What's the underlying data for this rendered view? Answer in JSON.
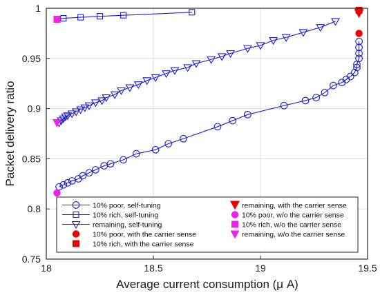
{
  "chart_data": {
    "type": "line",
    "xlabel": "Average current consumption (μ A)",
    "ylabel": "Packet delivery ratio",
    "xlim": [
      18,
      19.5
    ],
    "ylim": [
      0.75,
      1.0
    ],
    "xticks": [
      "18",
      "18.5",
      "19",
      "19.5"
    ],
    "yticks": [
      "0.75",
      "0.8",
      "0.85",
      "0.9",
      "0.95",
      "1"
    ],
    "grid": true,
    "legend_placement": "bottom",
    "colors": {
      "line": "#1c1cd6",
      "filled": "#ee0000",
      "magenta": "#ee22ee"
    },
    "series": [
      {
        "name": "10% poor, self-tuning",
        "marker": "circle",
        "x": [
          18.06,
          18.08,
          18.1,
          18.12,
          18.15,
          18.17,
          18.2,
          18.23,
          18.27,
          18.3,
          18.36,
          18.42,
          18.51,
          18.57,
          18.64,
          18.8,
          18.87,
          18.94,
          19.11,
          19.21,
          19.26,
          19.3,
          19.34,
          19.38,
          19.4,
          19.42,
          19.44,
          19.45,
          19.45,
          19.46,
          19.46,
          19.46,
          19.46
        ],
        "y": [
          0.822,
          0.824,
          0.826,
          0.828,
          0.83,
          0.833,
          0.836,
          0.839,
          0.843,
          0.845,
          0.849,
          0.855,
          0.859,
          0.865,
          0.87,
          0.882,
          0.888,
          0.894,
          0.903,
          0.908,
          0.911,
          0.916,
          0.923,
          0.926,
          0.929,
          0.932,
          0.936,
          0.941,
          0.944,
          0.95,
          0.955,
          0.961,
          0.967
        ]
      },
      {
        "name": "10% rich, self-tuning",
        "marker": "square",
        "x": [
          18.05,
          18.08,
          18.16,
          18.25,
          18.36,
          18.68
        ],
        "y": [
          0.989,
          0.99,
          0.991,
          0.992,
          0.993,
          0.996
        ]
      },
      {
        "name": "remaining, self-tuning",
        "marker": "triangle-down",
        "x": [
          18.06,
          18.07,
          18.08,
          18.09,
          18.1,
          18.12,
          18.14,
          18.16,
          18.18,
          18.2,
          18.23,
          18.26,
          18.28,
          18.32,
          18.35,
          18.39,
          18.43,
          18.47,
          18.51,
          18.56,
          18.6,
          18.66,
          18.7,
          18.77,
          18.82,
          18.86,
          18.94,
          19.0,
          19.06,
          19.12,
          19.2,
          19.28,
          19.35
        ],
        "y": [
          0.886,
          0.888,
          0.89,
          0.892,
          0.893,
          0.895,
          0.897,
          0.899,
          0.901,
          0.903,
          0.906,
          0.908,
          0.911,
          0.914,
          0.918,
          0.921,
          0.924,
          0.928,
          0.931,
          0.935,
          0.938,
          0.941,
          0.945,
          0.949,
          0.952,
          0.955,
          0.96,
          0.963,
          0.968,
          0.971,
          0.976,
          0.981,
          0.987
        ]
      },
      {
        "name": "10% poor, with the carrier sense",
        "marker": "circle-filled",
        "x": [
          19.46
        ],
        "y": [
          0.975
        ]
      },
      {
        "name": "10% rich, with the carrier sense",
        "marker": "square-filled",
        "x": [
          19.46
        ],
        "y": [
          0.998
        ]
      },
      {
        "name": "remaining, with the carrier sense",
        "marker": "triangle-down-filled",
        "x": [
          19.46
        ],
        "y": [
          0.995
        ]
      },
      {
        "name": "10% poor, w/o the carrier sense",
        "marker": "circle-magenta",
        "x": [
          18.05
        ],
        "y": [
          0.816
        ]
      },
      {
        "name": "10% rich, w/o the carrier sense",
        "marker": "square-magenta",
        "x": [
          18.05
        ],
        "y": [
          0.989
        ]
      },
      {
        "name": "remaining, w/o the carrier sense",
        "marker": "triangle-down-magenta",
        "x": [
          18.05
        ],
        "y": [
          0.886
        ]
      }
    ]
  }
}
